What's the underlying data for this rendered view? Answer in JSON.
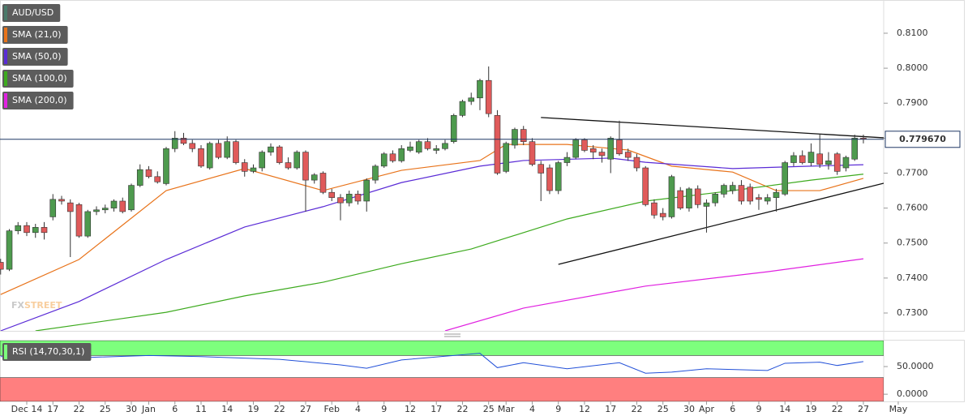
{
  "chart_data": [
    {
      "type": "candlestick",
      "title": "AUD/USD",
      "title_color": "#4a7a6a",
      "up_color": "#4e9a4e",
      "down_color": "#e05a5a",
      "xlim": [
        -0.07,
        101.33
      ],
      "ylim": [
        0.7249,
        0.8195
      ],
      "yticks": [
        {
          "value": 0.81,
          "label": "0.8100"
        },
        {
          "value": 0.8,
          "label": "0.8000"
        },
        {
          "value": 0.79,
          "label": "0.7900"
        },
        {
          "value": 0.78,
          "label": "0.7800"
        },
        {
          "value": 0.77,
          "label": "0.7700"
        },
        {
          "value": 0.76,
          "label": "0.7600"
        },
        {
          "value": 0.75,
          "label": "0.7500"
        },
        {
          "value": 0.74,
          "label": "0.7400"
        },
        {
          "value": 0.73,
          "label": "0.7300"
        }
      ],
      "xticks": [
        {
          "value": 3,
          "label": "Dec 14"
        },
        {
          "value": 6,
          "label": "17"
        },
        {
          "value": 9,
          "label": "22"
        },
        {
          "value": 12,
          "label": "25"
        },
        {
          "value": 15,
          "label": "30"
        },
        {
          "value": 17,
          "label": "Jan"
        },
        {
          "value": 20,
          "label": "6"
        },
        {
          "value": 23,
          "label": "11"
        },
        {
          "value": 26,
          "label": "14"
        },
        {
          "value": 29,
          "label": "19"
        },
        {
          "value": 32,
          "label": "22"
        },
        {
          "value": 35,
          "label": "27"
        },
        {
          "value": 38,
          "label": "Feb"
        },
        {
          "value": 41,
          "label": "4"
        },
        {
          "value": 44,
          "label": "9"
        },
        {
          "value": 47,
          "label": "12"
        },
        {
          "value": 50,
          "label": "17"
        },
        {
          "value": 53,
          "label": "22"
        },
        {
          "value": 56,
          "label": "25"
        },
        {
          "value": 58,
          "label": "Mar"
        },
        {
          "value": 61,
          "label": "4"
        },
        {
          "value": 64,
          "label": "9"
        },
        {
          "value": 67,
          "label": "12"
        },
        {
          "value": 70,
          "label": "17"
        },
        {
          "value": 73,
          "label": "22"
        },
        {
          "value": 76,
          "label": "25"
        },
        {
          "value": 79,
          "label": "30"
        },
        {
          "value": 81,
          "label": "Apr"
        },
        {
          "value": 84,
          "label": "6"
        },
        {
          "value": 87,
          "label": "9"
        },
        {
          "value": 90,
          "label": "14"
        },
        {
          "value": 93,
          "label": "19"
        },
        {
          "value": 96,
          "label": "22"
        },
        {
          "value": 99,
          "label": "27"
        },
        {
          "value": 103,
          "label": "May"
        }
      ],
      "candles": [
        [
          0.7445,
          0.7455,
          0.741,
          0.7425
        ],
        [
          0.7425,
          0.754,
          0.742,
          0.7535
        ],
        [
          0.7535,
          0.756,
          0.7525,
          0.755
        ],
        [
          0.755,
          0.756,
          0.752,
          0.753
        ],
        [
          0.753,
          0.7555,
          0.7515,
          0.7545
        ],
        [
          0.7545,
          0.756,
          0.751,
          0.753
        ],
        [
          0.7575,
          0.764,
          0.7565,
          0.7625
        ],
        [
          0.7625,
          0.7635,
          0.761,
          0.762
        ],
        [
          0.7615,
          0.7625,
          0.746,
          0.759
        ],
        [
          0.761,
          0.7615,
          0.7515,
          0.752
        ],
        [
          0.752,
          0.7595,
          0.7515,
          0.759
        ],
        [
          0.759,
          0.7605,
          0.758,
          0.7595
        ],
        [
          0.7595,
          0.761,
          0.7585,
          0.76
        ],
        [
          0.76,
          0.7625,
          0.759,
          0.762
        ],
        [
          0.762,
          0.763,
          0.7585,
          0.759
        ],
        [
          0.7595,
          0.767,
          0.759,
          0.7665
        ],
        [
          0.7665,
          0.7725,
          0.766,
          0.771
        ],
        [
          0.771,
          0.772,
          0.7685,
          0.769
        ],
        [
          0.769,
          0.7705,
          0.767,
          0.7675
        ],
        [
          0.767,
          0.7775,
          0.7665,
          0.777
        ],
        [
          0.777,
          0.782,
          0.776,
          0.78
        ],
        [
          0.78,
          0.7815,
          0.778,
          0.7785
        ],
        [
          0.7785,
          0.7795,
          0.776,
          0.777
        ],
        [
          0.777,
          0.778,
          0.7715,
          0.772
        ],
        [
          0.7715,
          0.779,
          0.771,
          0.7785
        ],
        [
          0.7785,
          0.7795,
          0.774,
          0.7745
        ],
        [
          0.7745,
          0.7805,
          0.774,
          0.779
        ],
        [
          0.779,
          0.7795,
          0.7725,
          0.773
        ],
        [
          0.773,
          0.774,
          0.769,
          0.7705
        ],
        [
          0.7705,
          0.7725,
          0.77,
          0.7715
        ],
        [
          0.7715,
          0.7765,
          0.7705,
          0.776
        ],
        [
          0.776,
          0.7785,
          0.775,
          0.7775
        ],
        [
          0.7775,
          0.778,
          0.7725,
          0.773
        ],
        [
          0.773,
          0.7745,
          0.771,
          0.7715
        ],
        [
          0.7715,
          0.7765,
          0.771,
          0.776
        ],
        [
          0.776,
          0.7765,
          0.759,
          0.768
        ],
        [
          0.768,
          0.77,
          0.767,
          0.7695
        ],
        [
          0.77,
          0.7705,
          0.764,
          0.7645
        ],
        [
          0.7645,
          0.7655,
          0.762,
          0.763
        ],
        [
          0.763,
          0.764,
          0.7565,
          0.7615
        ],
        [
          0.7615,
          0.765,
          0.7605,
          0.764
        ],
        [
          0.764,
          0.765,
          0.761,
          0.762
        ],
        [
          0.762,
          0.7685,
          0.759,
          0.768
        ],
        [
          0.768,
          0.7725,
          0.767,
          0.772
        ],
        [
          0.772,
          0.776,
          0.7715,
          0.7755
        ],
        [
          0.7755,
          0.7765,
          0.773,
          0.7735
        ],
        [
          0.7735,
          0.778,
          0.773,
          0.777
        ],
        [
          0.7765,
          0.779,
          0.776,
          0.7775
        ],
        [
          0.776,
          0.7795,
          0.7755,
          0.779
        ],
        [
          0.779,
          0.78,
          0.7765,
          0.777
        ],
        [
          0.7765,
          0.778,
          0.7755,
          0.777
        ],
        [
          0.777,
          0.7795,
          0.7765,
          0.7785
        ],
        [
          0.779,
          0.787,
          0.7785,
          0.7865
        ],
        [
          0.7865,
          0.791,
          0.786,
          0.7905
        ],
        [
          0.7905,
          0.793,
          0.7895,
          0.7915
        ],
        [
          0.7915,
          0.797,
          0.788,
          0.7965
        ],
        [
          0.7965,
          0.8005,
          0.786,
          0.787
        ],
        [
          0.7865,
          0.788,
          0.7695,
          0.77
        ],
        [
          0.7705,
          0.779,
          0.77,
          0.7785
        ],
        [
          0.778,
          0.783,
          0.777,
          0.7825
        ],
        [
          0.7825,
          0.7835,
          0.778,
          0.779
        ],
        [
          0.779,
          0.78,
          0.772,
          0.7725
        ],
        [
          0.7725,
          0.7735,
          0.762,
          0.77
        ],
        [
          0.7715,
          0.7725,
          0.764,
          0.765
        ],
        [
          0.765,
          0.7735,
          0.764,
          0.773
        ],
        [
          0.773,
          0.776,
          0.772,
          0.7745
        ],
        [
          0.7745,
          0.78,
          0.774,
          0.7795
        ],
        [
          0.7795,
          0.78,
          0.776,
          0.7765
        ],
        [
          0.777,
          0.778,
          0.774,
          0.776
        ],
        [
          0.776,
          0.777,
          0.773,
          0.775
        ],
        [
          0.774,
          0.7805,
          0.77,
          0.78
        ],
        [
          0.7795,
          0.785,
          0.775,
          0.7755
        ],
        [
          0.776,
          0.777,
          0.7735,
          0.7745
        ],
        [
          0.7745,
          0.7755,
          0.7705,
          0.7715
        ],
        [
          0.7715,
          0.772,
          0.7605,
          0.761
        ],
        [
          0.7615,
          0.7625,
          0.757,
          0.758
        ],
        [
          0.7585,
          0.76,
          0.7565,
          0.7575
        ],
        [
          0.7575,
          0.7695,
          0.757,
          0.769
        ],
        [
          0.765,
          0.766,
          0.7595,
          0.76
        ],
        [
          0.76,
          0.766,
          0.759,
          0.7655
        ],
        [
          0.7655,
          0.7665,
          0.76,
          0.761
        ],
        [
          0.7605,
          0.7625,
          0.753,
          0.7615
        ],
        [
          0.7615,
          0.7645,
          0.7605,
          0.764
        ],
        [
          0.764,
          0.767,
          0.763,
          0.7665
        ],
        [
          0.765,
          0.7675,
          0.764,
          0.7665
        ],
        [
          0.7665,
          0.768,
          0.761,
          0.762
        ],
        [
          0.766,
          0.767,
          0.761,
          0.762
        ],
        [
          0.763,
          0.764,
          0.7595,
          0.7625
        ],
        [
          0.762,
          0.764,
          0.761,
          0.763
        ],
        [
          0.763,
          0.7655,
          0.759,
          0.7645
        ],
        [
          0.764,
          0.7735,
          0.7635,
          0.773
        ],
        [
          0.773,
          0.776,
          0.772,
          0.775
        ],
        [
          0.775,
          0.7765,
          0.7725,
          0.773
        ],
        [
          0.773,
          0.7785,
          0.772,
          0.776
        ],
        [
          0.7755,
          0.781,
          0.7715,
          0.7725
        ],
        [
          0.7725,
          0.776,
          0.771,
          0.7735
        ],
        [
          0.7755,
          0.776,
          0.7695,
          0.7705
        ],
        [
          0.7715,
          0.775,
          0.7705,
          0.7745
        ],
        [
          0.774,
          0.781,
          0.7735,
          0.78
        ],
        [
          0.78,
          0.781,
          0.7785,
          0.7797
        ]
      ],
      "series": [
        {
          "name": "SMA (21,0)",
          "color": "#e8731a",
          "x": [
            0,
            9,
            19,
            28,
            37,
            46,
            55,
            58,
            65,
            72,
            77,
            84,
            89,
            94,
            99
          ],
          "values": [
            0.7353,
            0.7453,
            0.765,
            0.7713,
            0.765,
            0.7708,
            0.7736,
            0.7782,
            0.7782,
            0.7766,
            0.772,
            0.7703,
            0.765,
            0.765,
            0.7685
          ]
        },
        {
          "name": "SMA (50,0)",
          "color": "#5a2bd6",
          "x": [
            0,
            9,
            19,
            28,
            37,
            46,
            55,
            60,
            70,
            74,
            84,
            93,
            99
          ],
          "values": [
            0.7249,
            0.7333,
            0.7453,
            0.7546,
            0.7604,
            0.7673,
            0.772,
            0.7736,
            0.7743,
            0.7731,
            0.7713,
            0.772,
            0.7724
          ]
        },
        {
          "name": "SMA (100,0)",
          "color": "#3daa1e",
          "x": [
            4,
            19,
            28,
            37,
            46,
            54,
            65,
            74,
            84,
            93,
            99
          ],
          "values": [
            0.7249,
            0.7302,
            0.7349,
            0.7388,
            0.7441,
            0.7483,
            0.7569,
            0.762,
            0.765,
            0.768,
            0.7697
          ]
        },
        {
          "name": "SMA (200,0)",
          "color": "#e020e0",
          "x": [
            51,
            60,
            74,
            88,
            99
          ],
          "values": [
            0.7249,
            0.7314,
            0.7377,
            0.7418,
            0.7455
          ]
        }
      ],
      "trendlines": [
        {
          "x": [
            62,
            101.33
          ],
          "values": [
            0.7859,
            0.7801
          ]
        },
        {
          "x": [
            64,
            101.33
          ],
          "values": [
            0.7439,
            0.7671
          ]
        }
      ],
      "trendline_color": "#111111",
      "last_price": 0.77967,
      "last_price_label": "0.779670",
      "last_price_color": "#1f3864",
      "watermark": [
        "FX",
        "STREET"
      ]
    },
    {
      "type": "line",
      "title": "RSI (14,70,30,1)",
      "color": "#2250d8",
      "xlim": [
        -0.07,
        101.33
      ],
      "ylim": [
        -13,
        97
      ],
      "yticks": [
        {
          "value": 50,
          "label": "50.0000"
        },
        {
          "value": 0,
          "label": "0.0000"
        }
      ],
      "overbought": 70,
      "oversold": 30,
      "overbought_color": "#7dff7d",
      "oversold_color": "#ff7f7f",
      "x": [
        0,
        5,
        9,
        17,
        23,
        32,
        39,
        42,
        46,
        55,
        57,
        60,
        65,
        71,
        74,
        77,
        81,
        88,
        90,
        94,
        96,
        99
      ],
      "values": [
        68,
        68,
        66,
        70,
        68,
        63,
        53,
        47,
        62,
        74,
        48,
        57,
        46,
        57,
        38,
        40,
        46,
        43,
        56,
        58,
        52,
        59
      ]
    }
  ]
}
